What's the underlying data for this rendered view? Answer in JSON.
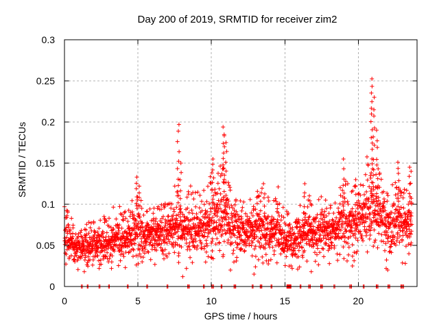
{
  "chart_data": {
    "type": "scatter",
    "title": "Day 200 of 2019, SRMTID for receiver zim2",
    "xlabel": "GPS time / hours",
    "ylabel": "SRMTID / TECUs",
    "xlim": [
      0,
      24
    ],
    "ylim": [
      0,
      0.3
    ],
    "x_ticks": [
      0,
      5,
      10,
      15,
      20
    ],
    "x_tick_labels": [
      "0",
      "5",
      "10",
      "15",
      "20"
    ],
    "y_ticks": [
      0,
      0.05,
      0.1,
      0.15,
      0.2,
      0.25,
      0.3
    ],
    "y_tick_labels": [
      "0",
      "0.05",
      "0.1",
      "0.15",
      "0.2",
      "0.25",
      "0.3"
    ],
    "grid": true,
    "legend": "none",
    "marker": "plus",
    "marker_px": 7,
    "colors": {
      "marker": "#ff0000",
      "frame": "#000000",
      "grid": "#b0b0b0",
      "text": "#000000",
      "background": "#ffffff"
    },
    "seed": 7,
    "n_points": 2450,
    "t_max": 23.65,
    "band": {
      "step": 0.5,
      "lo": [
        0.034,
        0.03,
        0.028,
        0.028,
        0.028,
        0.03,
        0.032,
        0.034,
        0.035,
        0.038,
        0.04,
        0.04,
        0.04,
        0.038,
        0.04,
        0.042,
        0.04,
        0.042,
        0.04,
        0.042,
        0.045,
        0.048,
        0.048,
        0.042,
        0.04,
        0.04,
        0.038,
        0.04,
        0.04,
        0.04,
        0.035,
        0.032,
        0.035,
        0.038,
        0.038,
        0.04,
        0.04,
        0.042,
        0.045,
        0.045,
        0.045,
        0.05,
        0.055,
        0.05,
        0.045,
        0.045,
        0.042,
        0.045,
        0.045
      ],
      "hi": [
        0.095,
        0.075,
        0.07,
        0.068,
        0.072,
        0.075,
        0.08,
        0.09,
        0.085,
        0.095,
        0.1,
        0.09,
        0.095,
        0.09,
        0.095,
        0.11,
        0.105,
        0.11,
        0.1,
        0.105,
        0.125,
        0.135,
        0.13,
        0.1,
        0.095,
        0.1,
        0.105,
        0.11,
        0.095,
        0.1,
        0.085,
        0.08,
        0.09,
        0.105,
        0.095,
        0.1,
        0.105,
        0.1,
        0.12,
        0.115,
        0.11,
        0.14,
        0.16,
        0.13,
        0.115,
        0.12,
        0.11,
        0.115,
        0.115
      ],
      "max": [
        0.1,
        0.085,
        0.08,
        0.078,
        0.08,
        0.085,
        0.09,
        0.1,
        0.095,
        0.105,
        0.11,
        0.1,
        0.105,
        0.1,
        0.105,
        0.125,
        0.115,
        0.125,
        0.115,
        0.12,
        0.14,
        0.15,
        0.14,
        0.11,
        0.105,
        0.11,
        0.115,
        0.12,
        0.105,
        0.11,
        0.095,
        0.088,
        0.1,
        0.115,
        0.105,
        0.11,
        0.115,
        0.11,
        0.13,
        0.125,
        0.12,
        0.155,
        0.175,
        0.145,
        0.125,
        0.13,
        0.12,
        0.125,
        0.12
      ]
    },
    "spikes": [
      {
        "t": 4.95,
        "base": 0.095,
        "top": 0.133,
        "n": 6
      },
      {
        "t": 5.05,
        "base": 0.09,
        "top": 0.122,
        "n": 4
      },
      {
        "t": 7.75,
        "base": 0.1,
        "top": 0.197,
        "n": 10
      },
      {
        "t": 7.9,
        "base": 0.095,
        "top": 0.15,
        "n": 6
      },
      {
        "t": 10.1,
        "base": 0.1,
        "top": 0.155,
        "n": 8
      },
      {
        "t": 10.85,
        "base": 0.11,
        "top": 0.194,
        "n": 14
      },
      {
        "t": 11.0,
        "base": 0.1,
        "top": 0.175,
        "n": 7
      },
      {
        "t": 13.6,
        "base": 0.1,
        "top": 0.125,
        "n": 3
      },
      {
        "t": 14.6,
        "base": 0.1,
        "top": 0.121,
        "n": 2
      },
      {
        "t": 16.35,
        "base": 0.09,
        "top": 0.125,
        "n": 5
      },
      {
        "t": 19.0,
        "base": 0.1,
        "top": 0.155,
        "n": 6
      },
      {
        "t": 19.8,
        "base": 0.1,
        "top": 0.13,
        "n": 4
      },
      {
        "t": 20.9,
        "base": 0.12,
        "top": 0.2525,
        "n": 16
      },
      {
        "t": 21.05,
        "base": 0.12,
        "top": 0.23,
        "n": 10
      },
      {
        "t": 21.3,
        "base": 0.11,
        "top": 0.19,
        "n": 8
      },
      {
        "t": 22.75,
        "base": 0.1,
        "top": 0.151,
        "n": 8
      },
      {
        "t": 23.45,
        "base": 0.1,
        "top": 0.145,
        "n": 5
      },
      {
        "t": 23.55,
        "base": 0.09,
        "top": 0.14,
        "n": 4
      }
    ],
    "low_outliers": [
      [
        1.35,
        0.018
      ],
      [
        3.2,
        0.022
      ],
      [
        8.05,
        0.012
      ],
      [
        8.3,
        0.022
      ],
      [
        11.3,
        0.02
      ],
      [
        12.9,
        0.015
      ],
      [
        13.0,
        0.024
      ],
      [
        15.5,
        0.022
      ],
      [
        16.8,
        0.018
      ],
      [
        19.6,
        0.025
      ],
      [
        21.9,
        0.022
      ],
      [
        22.0,
        0.02
      ],
      [
        23.2,
        0.028
      ]
    ],
    "zero_points": [
      1.15,
      1.22,
      1.55,
      1.6,
      2.35,
      2.42,
      3.0,
      3.06,
      4.28,
      4.34,
      5.6,
      5.66,
      6.98,
      7.04,
      8.38,
      8.44,
      8.5,
      9.46,
      9.52,
      10.02,
      10.08,
      10.14,
      10.66,
      10.72,
      11.54,
      11.6,
      11.66,
      12.78,
      12.84,
      13.32,
      13.38,
      13.44,
      14.06,
      14.12,
      15.14,
      15.18,
      15.22,
      15.26,
      15.3,
      15.34,
      15.38,
      15.42,
      16.04,
      16.1,
      16.62,
      16.68,
      16.74,
      17.44,
      17.5,
      17.56,
      18.34,
      18.4,
      19.42,
      19.48,
      19.54,
      20.34,
      20.4,
      21.22,
      21.28,
      21.34,
      22.02,
      22.08,
      22.14,
      22.9,
      22.96,
      23.02,
      23.08
    ]
  }
}
